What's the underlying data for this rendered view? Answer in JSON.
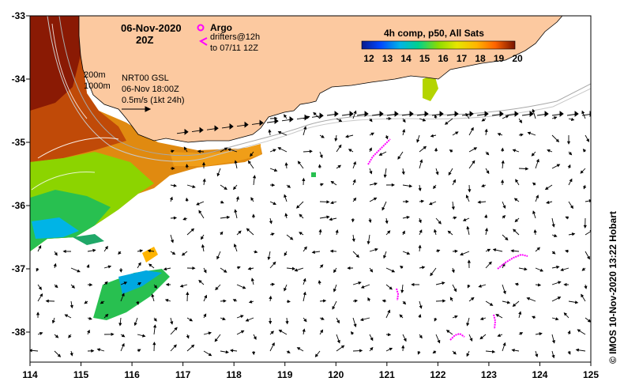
{
  "title": {
    "date": "06-Nov-2020",
    "hour": "20Z"
  },
  "legend": {
    "argo_label": "Argo",
    "drifters_line1": "drifters@12h",
    "drifters_line2": "to 07/11 12Z",
    "isobath_200": "200m",
    "isobath_1000": "1000m",
    "product": "NRT00 GSL",
    "product_time": "06-Nov 18:00Z",
    "vector_scale": "0.5m/s (1kt 24h)"
  },
  "colorbar": {
    "title": "4h comp, p50, All Sats",
    "ticks": [
      "12",
      "13",
      "14",
      "15",
      "16",
      "17",
      "18",
      "19",
      "20"
    ],
    "colors": [
      "#0a1a8c",
      "#0046ff",
      "#00b4e6",
      "#00d28c",
      "#8cdc00",
      "#e6e600",
      "#ffb400",
      "#ff6400",
      "#c81e00",
      "#781400"
    ]
  },
  "axes": {
    "x_ticks": [
      "114",
      "115",
      "116",
      "117",
      "118",
      "119",
      "120",
      "121",
      "122",
      "123",
      "124",
      "125"
    ],
    "y_ticks": [
      "-33",
      "-34",
      "-35",
      "-36",
      "-37",
      "-38"
    ]
  },
  "credit": "©  IMOS 10-Nov-2020 13:22 Hobart",
  "colors": {
    "land": "#fcc9a0",
    "argo": "#ff00ff",
    "drifter": "#ff00ff"
  }
}
